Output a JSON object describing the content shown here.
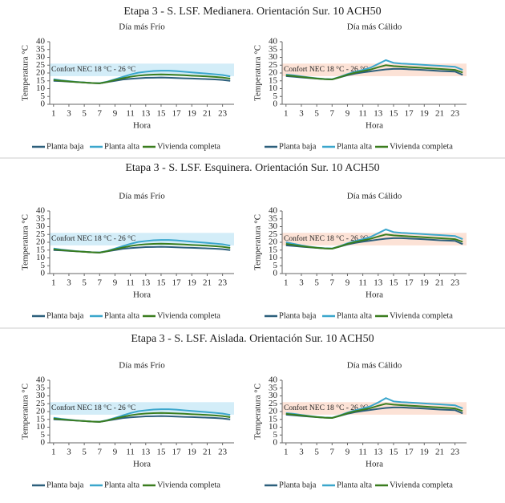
{
  "section_titles": [
    "Etapa 3 - S. LSF. Medianera. Orientación Sur. 10 ACH50",
    "Etapa 3 - S. LSF. Esquinera. Orientación Sur. 10 ACH50",
    "Etapa 3 - S. LSF. Aislada. Orientación Sur. 10 ACH50"
  ],
  "chart_data": [
    {
      "type": "line",
      "title": "Día más Frío",
      "xlabel": "Hora",
      "ylabel": "Temperatura °C",
      "annotation": "Confort NEC 18 °C - 26 °C",
      "band": [
        18,
        26
      ],
      "band_color": "#d3edf8",
      "x": [
        1,
        2,
        3,
        4,
        5,
        6,
        7,
        8,
        9,
        10,
        11,
        12,
        13,
        14,
        15,
        16,
        17,
        18,
        19,
        20,
        21,
        22,
        23,
        24
      ],
      "xlim": [
        0.5,
        24.5
      ],
      "xticks": [
        1,
        3,
        5,
        7,
        9,
        11,
        13,
        15,
        17,
        19,
        21,
        23
      ],
      "ylim": [
        0,
        40
      ],
      "yticks": [
        0,
        5,
        10,
        15,
        20,
        25,
        30,
        35,
        40
      ],
      "series": [
        {
          "name": "Planta baja",
          "color": "#2c5f7c",
          "values": [
            15,
            14.8,
            14.5,
            14.2,
            13.9,
            13.6,
            13.4,
            14.2,
            15,
            15.8,
            16.3,
            16.6,
            16.9,
            17,
            17.1,
            17,
            16.8,
            16.6,
            16.5,
            16.3,
            16.1,
            15.9,
            15.6,
            15
          ]
        },
        {
          "name": "Planta alta",
          "color": "#3aa6cc",
          "values": [
            16,
            15.3,
            14.8,
            14.3,
            14,
            13.6,
            13.5,
            14.5,
            16,
            17.5,
            19,
            20.2,
            20.8,
            21.3,
            21.5,
            21.5,
            21.2,
            20.8,
            20.4,
            20,
            19.6,
            19.2,
            18.7,
            17.8
          ]
        },
        {
          "name": "Vivienda completa",
          "color": "#3a7d1e",
          "values": [
            15.5,
            15,
            14.6,
            14.2,
            13.9,
            13.6,
            13.4,
            14.3,
            15.5,
            16.6,
            17.6,
            18.3,
            18.7,
            19,
            19.1,
            19,
            18.8,
            18.6,
            18.3,
            18.1,
            17.8,
            17.5,
            17.1,
            16.4
          ]
        }
      ]
    },
    {
      "type": "line",
      "title": "Día más Cálido",
      "xlabel": "Hora",
      "ylabel": "Temperatura °C",
      "annotation": "Confort NEC 18 °C - 26 °C",
      "band": [
        18,
        26
      ],
      "band_color": "#fce2d6",
      "x": [
        1,
        2,
        3,
        4,
        5,
        6,
        7,
        8,
        9,
        10,
        11,
        12,
        13,
        14,
        15,
        16,
        17,
        18,
        19,
        20,
        21,
        22,
        23,
        24
      ],
      "xlim": [
        0.5,
        24.5
      ],
      "xticks": [
        1,
        3,
        5,
        7,
        9,
        11,
        13,
        15,
        17,
        19,
        21,
        23
      ],
      "ylim": [
        0,
        40
      ],
      "yticks": [
        0,
        5,
        10,
        15,
        20,
        25,
        30,
        35,
        40
      ],
      "series": [
        {
          "name": "Planta baja",
          "color": "#2c5f7c",
          "values": [
            18,
            17.6,
            17.2,
            16.8,
            16.4,
            16.1,
            15.9,
            17.2,
            18.6,
            19.6,
            20.4,
            21,
            21.7,
            22.3,
            22.6,
            22.6,
            22.4,
            22.2,
            21.9,
            21.6,
            21.3,
            21.1,
            20.9,
            18.8
          ]
        },
        {
          "name": "Planta alta",
          "color": "#3aa6cc",
          "values": [
            19,
            18.5,
            17.8,
            17.2,
            16.6,
            16.2,
            16,
            17.5,
            19.3,
            20.8,
            22,
            23.4,
            25.8,
            28.2,
            26.5,
            26,
            25.8,
            25.5,
            25.2,
            24.9,
            24.6,
            24.3,
            24,
            22
          ]
        },
        {
          "name": "Vivienda completa",
          "color": "#3a7d1e",
          "values": [
            18.5,
            18,
            17.5,
            17,
            16.5,
            16.1,
            15.9,
            17.3,
            18.9,
            20.2,
            21.2,
            22.2,
            23.7,
            25,
            24.4,
            24.1,
            23.8,
            23.5,
            23.2,
            22.9,
            22.6,
            22.3,
            22,
            20.3
          ]
        }
      ]
    },
    {
      "type": "line",
      "title": "Día más Frío",
      "xlabel": "Hora",
      "ylabel": "Temperatura °C",
      "annotation": "Confort NEC 18 °C - 26 °C",
      "band": [
        18,
        26
      ],
      "band_color": "#d3edf8",
      "x": [
        1,
        2,
        3,
        4,
        5,
        6,
        7,
        8,
        9,
        10,
        11,
        12,
        13,
        14,
        15,
        16,
        17,
        18,
        19,
        20,
        21,
        22,
        23,
        24
      ],
      "xlim": [
        0.5,
        24.5
      ],
      "xticks": [
        1,
        3,
        5,
        7,
        9,
        11,
        13,
        15,
        17,
        19,
        21,
        23
      ],
      "ylim": [
        0,
        40
      ],
      "yticks": [
        0,
        5,
        10,
        15,
        20,
        25,
        30,
        35,
        40
      ],
      "series": [
        {
          "name": "Planta baja",
          "color": "#2c5f7c",
          "values": [
            15,
            14.8,
            14.5,
            14.2,
            13.9,
            13.6,
            13.4,
            14.2,
            15,
            15.8,
            16.3,
            16.6,
            16.9,
            17,
            17.1,
            17,
            16.8,
            16.6,
            16.5,
            16.3,
            16.1,
            15.9,
            15.6,
            15
          ]
        },
        {
          "name": "Planta alta",
          "color": "#3aa6cc",
          "values": [
            16,
            15.3,
            14.8,
            14.3,
            14,
            13.6,
            13.5,
            14.5,
            16,
            17.5,
            19,
            20.2,
            20.8,
            21.3,
            21.5,
            21.5,
            21.2,
            20.8,
            20.4,
            20,
            19.6,
            19.2,
            18.7,
            17.8
          ]
        },
        {
          "name": "Vivienda completa",
          "color": "#3a7d1e",
          "values": [
            15.5,
            15,
            14.6,
            14.2,
            13.9,
            13.6,
            13.4,
            14.3,
            15.5,
            16.6,
            17.6,
            18.3,
            18.7,
            19,
            19.1,
            19,
            18.8,
            18.6,
            18.3,
            18.1,
            17.8,
            17.5,
            17.1,
            16.4
          ]
        }
      ]
    },
    {
      "type": "line",
      "title": "Día más Cálido",
      "xlabel": "Hora",
      "ylabel": "Temperatura °C",
      "annotation": "Confort NEC 18 °C - 26 °C",
      "band": [
        18,
        26
      ],
      "band_color": "#fce2d6",
      "x": [
        1,
        2,
        3,
        4,
        5,
        6,
        7,
        8,
        9,
        10,
        11,
        12,
        13,
        14,
        15,
        16,
        17,
        18,
        19,
        20,
        21,
        22,
        23,
        24
      ],
      "xlim": [
        0.5,
        24.5
      ],
      "xticks": [
        1,
        3,
        5,
        7,
        9,
        11,
        13,
        15,
        17,
        19,
        21,
        23
      ],
      "ylim": [
        0,
        40
      ],
      "yticks": [
        0,
        5,
        10,
        15,
        20,
        25,
        30,
        35,
        40
      ],
      "series": [
        {
          "name": "Planta baja",
          "color": "#2c5f7c",
          "values": [
            18,
            17.6,
            17.2,
            16.8,
            16.4,
            16.1,
            15.9,
            17.2,
            18.6,
            19.6,
            20.4,
            21,
            21.7,
            22.3,
            22.6,
            22.6,
            22.4,
            22.2,
            21.9,
            21.6,
            21.3,
            21.1,
            20.9,
            18.8
          ]
        },
        {
          "name": "Planta alta",
          "color": "#3aa6cc",
          "values": [
            20,
            19,
            18,
            17.2,
            16.6,
            16.2,
            16,
            17.5,
            19.3,
            20.8,
            22,
            23.4,
            25.8,
            28.2,
            26.5,
            26,
            25.8,
            25.5,
            25.2,
            24.9,
            24.6,
            24.3,
            24,
            22
          ]
        },
        {
          "name": "Vivienda completa",
          "color": "#3a7d1e",
          "values": [
            19,
            18.3,
            17.5,
            17,
            16.5,
            16.1,
            15.9,
            17.3,
            18.9,
            20.2,
            21.2,
            22.2,
            23.7,
            25,
            24.4,
            24.1,
            23.8,
            23.5,
            23.2,
            22.9,
            22.6,
            22.3,
            22,
            20.3
          ]
        }
      ]
    },
    {
      "type": "line",
      "title": "Día más Frío",
      "xlabel": "Hora",
      "ylabel": "Temperatura °C",
      "annotation": "Confort NEC 18 °C - 26 °C",
      "band": [
        18,
        26
      ],
      "band_color": "#d3edf8",
      "x": [
        1,
        2,
        3,
        4,
        5,
        6,
        7,
        8,
        9,
        10,
        11,
        12,
        13,
        14,
        15,
        16,
        17,
        18,
        19,
        20,
        21,
        22,
        23,
        24
      ],
      "xlim": [
        0.5,
        24.5
      ],
      "xticks": [
        1,
        3,
        5,
        7,
        9,
        11,
        13,
        15,
        17,
        19,
        21,
        23
      ],
      "ylim": [
        0,
        40
      ],
      "yticks": [
        0,
        5,
        10,
        15,
        20,
        25,
        30,
        35,
        40
      ],
      "series": [
        {
          "name": "Planta baja",
          "color": "#2c5f7c",
          "values": [
            15,
            14.8,
            14.5,
            14.2,
            13.9,
            13.6,
            13.4,
            14.2,
            15,
            15.8,
            16.3,
            16.6,
            16.9,
            17,
            17.1,
            17,
            16.8,
            16.6,
            16.5,
            16.3,
            16.1,
            15.9,
            15.6,
            15
          ]
        },
        {
          "name": "Planta alta",
          "color": "#3aa6cc",
          "values": [
            16,
            15.3,
            14.8,
            14.3,
            14,
            13.6,
            13.5,
            14.5,
            16,
            17.5,
            19,
            20.2,
            20.8,
            21.3,
            21.5,
            21.5,
            21.2,
            20.8,
            20.4,
            20,
            19.6,
            19.2,
            18.7,
            17.8
          ]
        },
        {
          "name": "Vivienda completa",
          "color": "#3a7d1e",
          "values": [
            15.5,
            15,
            14.6,
            14.2,
            13.9,
            13.6,
            13.4,
            14.3,
            15.5,
            16.6,
            17.6,
            18.3,
            18.7,
            19,
            19.1,
            19,
            18.8,
            18.6,
            18.3,
            18.1,
            17.8,
            17.5,
            17.1,
            16.4
          ]
        }
      ]
    },
    {
      "type": "line",
      "title": "Día más Cálido",
      "xlabel": "Hora",
      "ylabel": "Temperatura °C",
      "annotation": "Confort NEC 18 °C - 26 °C",
      "band": [
        18,
        26
      ],
      "band_color": "#fce2d6",
      "x": [
        1,
        2,
        3,
        4,
        5,
        6,
        7,
        8,
        9,
        10,
        11,
        12,
        13,
        14,
        15,
        16,
        17,
        18,
        19,
        20,
        21,
        22,
        23,
        24
      ],
      "xlim": [
        0.5,
        24.5
      ],
      "xticks": [
        1,
        3,
        5,
        7,
        9,
        11,
        13,
        15,
        17,
        19,
        21,
        23
      ],
      "ylim": [
        0,
        40
      ],
      "yticks": [
        0,
        5,
        10,
        15,
        20,
        25,
        30,
        35,
        40
      ],
      "series": [
        {
          "name": "Planta baja",
          "color": "#2c5f7c",
          "values": [
            18,
            17.6,
            17.2,
            16.8,
            16.4,
            16.1,
            15.9,
            17.2,
            18.6,
            19.6,
            20.4,
            21,
            21.7,
            22.3,
            22.6,
            22.6,
            22.4,
            22.2,
            21.9,
            21.6,
            21.3,
            21.1,
            20.9,
            18.8
          ]
        },
        {
          "name": "Planta alta",
          "color": "#3aa6cc",
          "values": [
            19,
            18.5,
            17.8,
            17.2,
            16.6,
            16.2,
            16,
            17.5,
            19.3,
            20.8,
            22,
            23.4,
            25.8,
            28.6,
            26.5,
            26,
            25.8,
            25.5,
            25.2,
            24.9,
            24.6,
            24.3,
            24,
            22
          ]
        },
        {
          "name": "Vivienda completa",
          "color": "#3a7d1e",
          "values": [
            18.5,
            18,
            17.5,
            17,
            16.5,
            16.1,
            15.9,
            17.3,
            18.9,
            20.2,
            21.2,
            22.2,
            23.7,
            25,
            24.4,
            24.1,
            23.8,
            23.5,
            23.2,
            22.9,
            22.6,
            22.3,
            22,
            20.3
          ]
        }
      ]
    }
  ]
}
